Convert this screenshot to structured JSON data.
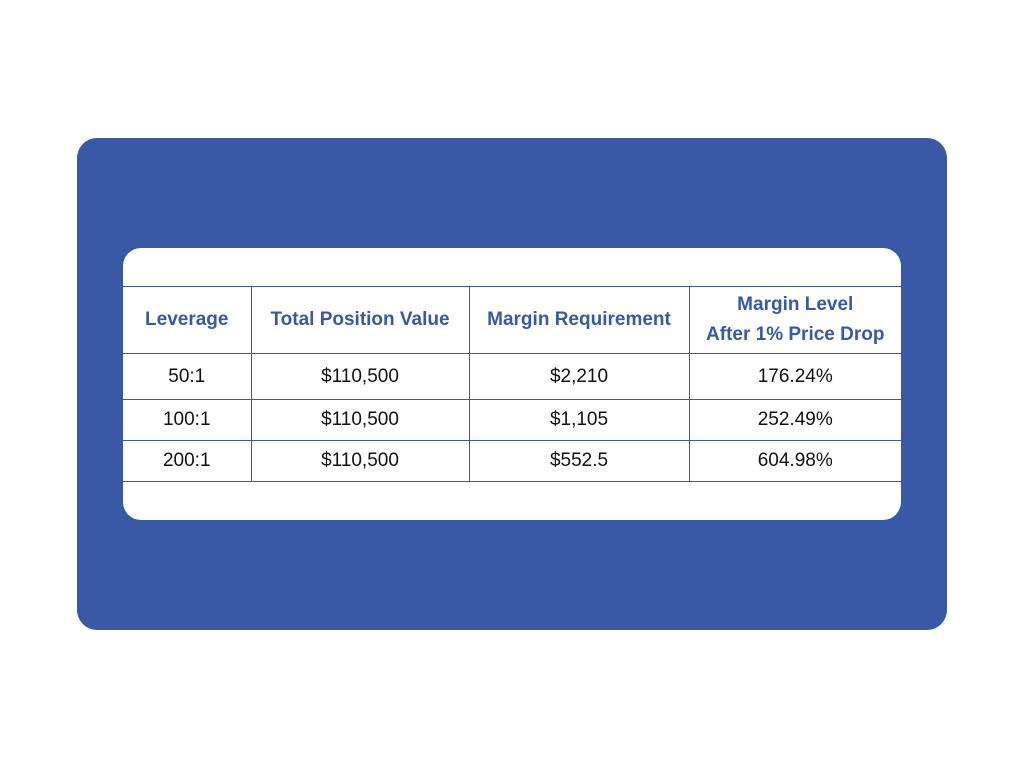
{
  "table": {
    "headers": {
      "leverage": "Leverage",
      "total_position_value": "Total Position Value",
      "margin_requirement": "Margin Requirement",
      "margin_level_line1": "Margin Level",
      "margin_level_line2": "After 1% Price Drop"
    },
    "rows": [
      [
        "50:1",
        "$110,500",
        "$2,210",
        "176.24%"
      ],
      [
        "100:1",
        "$110,500",
        "$1,105",
        "252.49%"
      ],
      [
        "200:1",
        "$110,500",
        "$552.5",
        "604.98%"
      ]
    ]
  },
  "colors": {
    "accent": "#3959a7",
    "card_background": "#ffffff",
    "cell_text": "#111111"
  }
}
